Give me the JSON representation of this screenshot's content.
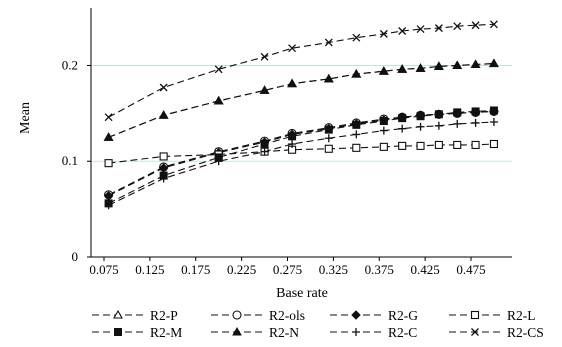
{
  "chart_data": {
    "type": "line",
    "xlabel": "Base rate",
    "ylabel": "Mean",
    "xlim": [
      0.06,
      0.51
    ],
    "ylim": [
      0,
      0.26
    ],
    "xticks": [
      0.075,
      0.125,
      0.175,
      0.225,
      0.275,
      0.325,
      0.375,
      0.425,
      0.475
    ],
    "xtick_labels": [
      "0.075",
      "0.125",
      "0.175",
      "0.225",
      "0.275",
      "0.325",
      "0.375",
      "0.425",
      "0.475"
    ],
    "yticks": [
      0,
      0.1,
      0.2
    ],
    "ytick_labels": [
      "0",
      "0.1",
      "0.2"
    ],
    "grid": "horizontal",
    "legend_position": "bottom",
    "x": [
      0.08,
      0.14,
      0.2,
      0.25,
      0.28,
      0.32,
      0.35,
      0.38,
      0.4,
      0.42,
      0.44,
      0.46,
      0.48,
      0.5
    ],
    "series": [
      {
        "name": "R2-P",
        "marker": "triangle-open",
        "values": [
          0.125,
          0.148,
          0.163,
          0.174,
          0.181,
          0.186,
          0.191,
          0.194,
          0.196,
          0.197,
          0.199,
          0.2,
          0.201,
          0.202
        ]
      },
      {
        "name": "R2-ols",
        "marker": "circle-open",
        "values": [
          0.065,
          0.094,
          0.11,
          0.121,
          0.129,
          0.135,
          0.14,
          0.144,
          0.146,
          0.148,
          0.149,
          0.15,
          0.151,
          0.152
        ]
      },
      {
        "name": "R2-G",
        "marker": "diamond-filled",
        "values": [
          0.064,
          0.093,
          0.109,
          0.12,
          0.128,
          0.134,
          0.139,
          0.143,
          0.146,
          0.148,
          0.149,
          0.15,
          0.151,
          0.152
        ]
      },
      {
        "name": "R2-L",
        "marker": "square-open",
        "values": [
          0.098,
          0.105,
          0.107,
          0.11,
          0.112,
          0.113,
          0.114,
          0.115,
          0.116,
          0.116,
          0.117,
          0.117,
          0.117,
          0.118
        ]
      },
      {
        "name": "R2-M",
        "marker": "square-filled",
        "values": [
          0.056,
          0.085,
          0.104,
          0.118,
          0.126,
          0.133,
          0.138,
          0.142,
          0.145,
          0.147,
          0.149,
          0.151,
          0.152,
          0.153
        ]
      },
      {
        "name": "R2-N",
        "marker": "triangle-filled",
        "values": [
          0.125,
          0.148,
          0.163,
          0.174,
          0.181,
          0.186,
          0.191,
          0.194,
          0.196,
          0.197,
          0.199,
          0.2,
          0.201,
          0.202
        ]
      },
      {
        "name": "R2-C",
        "marker": "plus",
        "values": [
          0.054,
          0.082,
          0.1,
          0.11,
          0.118,
          0.124,
          0.128,
          0.132,
          0.134,
          0.136,
          0.137,
          0.139,
          0.14,
          0.141
        ]
      },
      {
        "name": "R2-CS",
        "marker": "cross",
        "values": [
          0.146,
          0.177,
          0.196,
          0.209,
          0.218,
          0.224,
          0.229,
          0.233,
          0.236,
          0.238,
          0.239,
          0.241,
          0.242,
          0.243
        ]
      }
    ]
  }
}
